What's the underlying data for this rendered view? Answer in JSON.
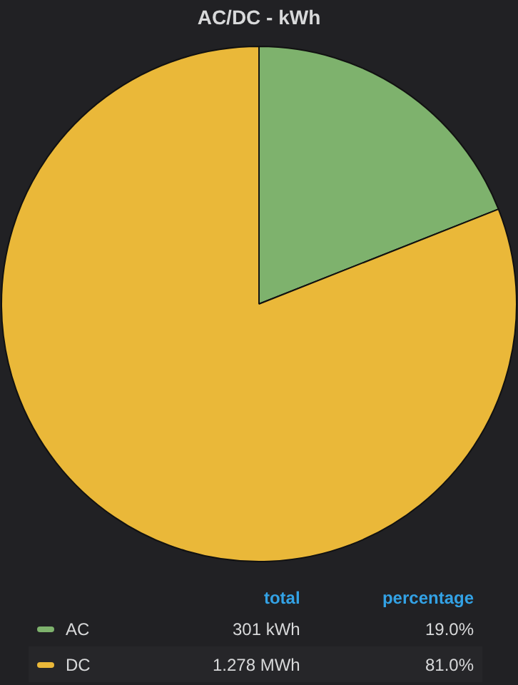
{
  "chart_data": {
    "type": "pie",
    "title": "AC/DC - kWh",
    "categories": [
      "AC",
      "DC"
    ],
    "values": [
      19.0,
      81.0
    ],
    "colors": [
      "#7eb26d",
      "#eab839"
    ],
    "value_labels": [
      "19.0%",
      "81.0%"
    ],
    "totals": [
      "301 kWh",
      "1.278 MWh"
    ],
    "annotations": [
      "total",
      "percentage"
    ],
    "legend": "bottom"
  }
}
